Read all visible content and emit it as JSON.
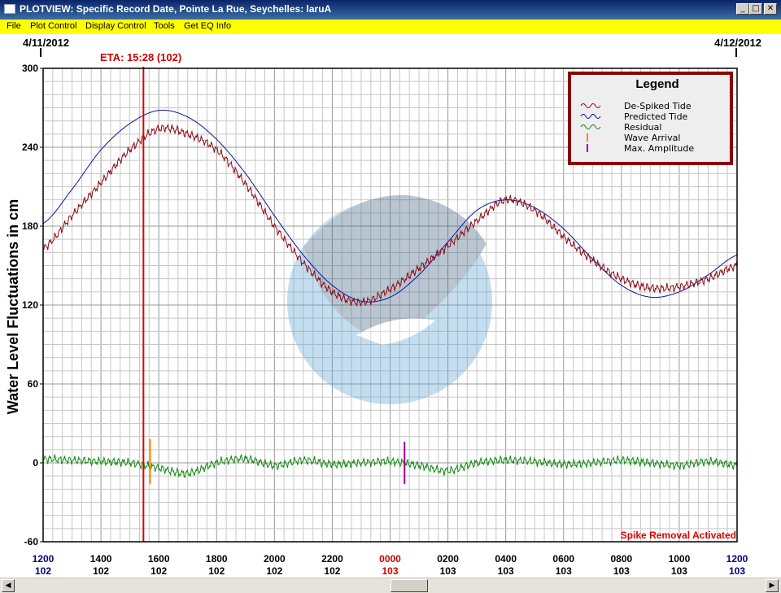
{
  "window": {
    "title": "PLOTVIEW: Specific Record Date, Pointe La Rue, Seychelles: laruA",
    "minimize_glyph": "_",
    "maximize_glyph": "□",
    "close_glyph": "✕"
  },
  "menu": [
    "File",
    "Plot Control",
    "Display Control",
    "Tools",
    "Get EQ Info"
  ],
  "scrollbar": {
    "left_glyph": "◀",
    "right_glyph": "▶"
  },
  "colors": {
    "despiked": "#8b0a14",
    "predicted": "#1010a0",
    "residual": "#118811",
    "wave_arrival": "#ff8800",
    "max_amplitude": "#990099",
    "eta_line": "#dd0000",
    "menubar": "#ffff00"
  },
  "chart_data": {
    "type": "line",
    "ylabel": "Water Level Fluctuations in cm",
    "ylim": [
      -60,
      300
    ],
    "y_ticks": [
      "300",
      "240",
      "180",
      "120",
      "60",
      "0",
      "-60"
    ],
    "date_left": "4/11/2012",
    "date_right": "4/12/2012",
    "eta_label": "ETA: 15:28 (102)",
    "eta_hour": 15.47,
    "spike_text": "Spike Removal Activated",
    "x_hours": [
      12,
      14,
      16,
      18,
      20,
      22,
      24,
      26,
      28,
      30,
      32,
      34,
      36
    ],
    "x_ticks": [
      {
        "time": "1200",
        "day": "102",
        "style": "edge"
      },
      {
        "time": "1400",
        "day": "102",
        "style": "normal"
      },
      {
        "time": "1600",
        "day": "102",
        "style": "normal"
      },
      {
        "time": "1800",
        "day": "102",
        "style": "normal"
      },
      {
        "time": "2000",
        "day": "102",
        "style": "normal"
      },
      {
        "time": "2200",
        "day": "102",
        "style": "normal"
      },
      {
        "time": "0000",
        "day": "103",
        "style": "midnight"
      },
      {
        "time": "0200",
        "day": "103",
        "style": "normal"
      },
      {
        "time": "0400",
        "day": "103",
        "style": "normal"
      },
      {
        "time": "0600",
        "day": "103",
        "style": "normal"
      },
      {
        "time": "0800",
        "day": "103",
        "style": "normal"
      },
      {
        "time": "1000",
        "day": "103",
        "style": "normal"
      },
      {
        "time": "1200",
        "day": "103",
        "style": "edge"
      }
    ],
    "legend": {
      "title": "Legend",
      "position": "top-right",
      "items": [
        {
          "label": "De-Spiked Tide",
          "symbol": "wave",
          "color": "#8b0a14"
        },
        {
          "label": "Predicted Tide",
          "symbol": "wave",
          "color": "#1010a0"
        },
        {
          "label": "Residual",
          "symbol": "wave",
          "color": "#118811"
        },
        {
          "label": "Wave Arrival",
          "symbol": "bar",
          "color": "#ff8800"
        },
        {
          "label": "Max. Amplitude",
          "symbol": "bar",
          "color": "#990099"
        }
      ]
    },
    "wave_arrival_hour": 15.7,
    "max_amplitude_hour": 24.5,
    "series": [
      {
        "name": "Predicted Tide",
        "x": [
          12,
          13,
          14,
          15,
          16,
          17,
          18,
          19,
          20,
          21,
          22,
          23,
          24,
          25,
          26,
          27,
          28,
          29,
          30,
          31,
          32,
          33,
          34,
          35,
          36
        ],
        "y": [
          182,
          208,
          238,
          258,
          268,
          263,
          246,
          220,
          188,
          158,
          135,
          123,
          126,
          143,
          168,
          192,
          200,
          194,
          178,
          155,
          135,
          126,
          130,
          143,
          158
        ]
      },
      {
        "name": "De-Spiked Tide",
        "x": [
          12,
          13,
          14,
          15,
          16,
          17,
          18,
          19,
          20,
          21,
          22,
          23,
          24,
          25,
          26,
          27,
          28,
          29,
          30,
          31,
          32,
          33,
          34,
          35,
          36
        ],
        "y": [
          163,
          188,
          213,
          238,
          254,
          250,
          238,
          212,
          180,
          152,
          130,
          122,
          132,
          148,
          165,
          184,
          200,
          192,
          172,
          154,
          140,
          133,
          134,
          140,
          150
        ]
      },
      {
        "name": "Residual",
        "x": [
          12,
          13,
          14,
          15,
          16,
          17,
          18,
          19,
          20,
          21,
          22,
          23,
          24,
          25,
          26,
          27,
          28,
          29,
          30,
          31,
          32,
          33,
          34,
          35,
          36
        ],
        "y": [
          3,
          2,
          1,
          0,
          -4,
          -8,
          0,
          3,
          -2,
          2,
          -1,
          0,
          1,
          -2,
          -6,
          0,
          2,
          1,
          -1,
          0,
          2,
          0,
          -2,
          1,
          -2
        ]
      }
    ]
  }
}
